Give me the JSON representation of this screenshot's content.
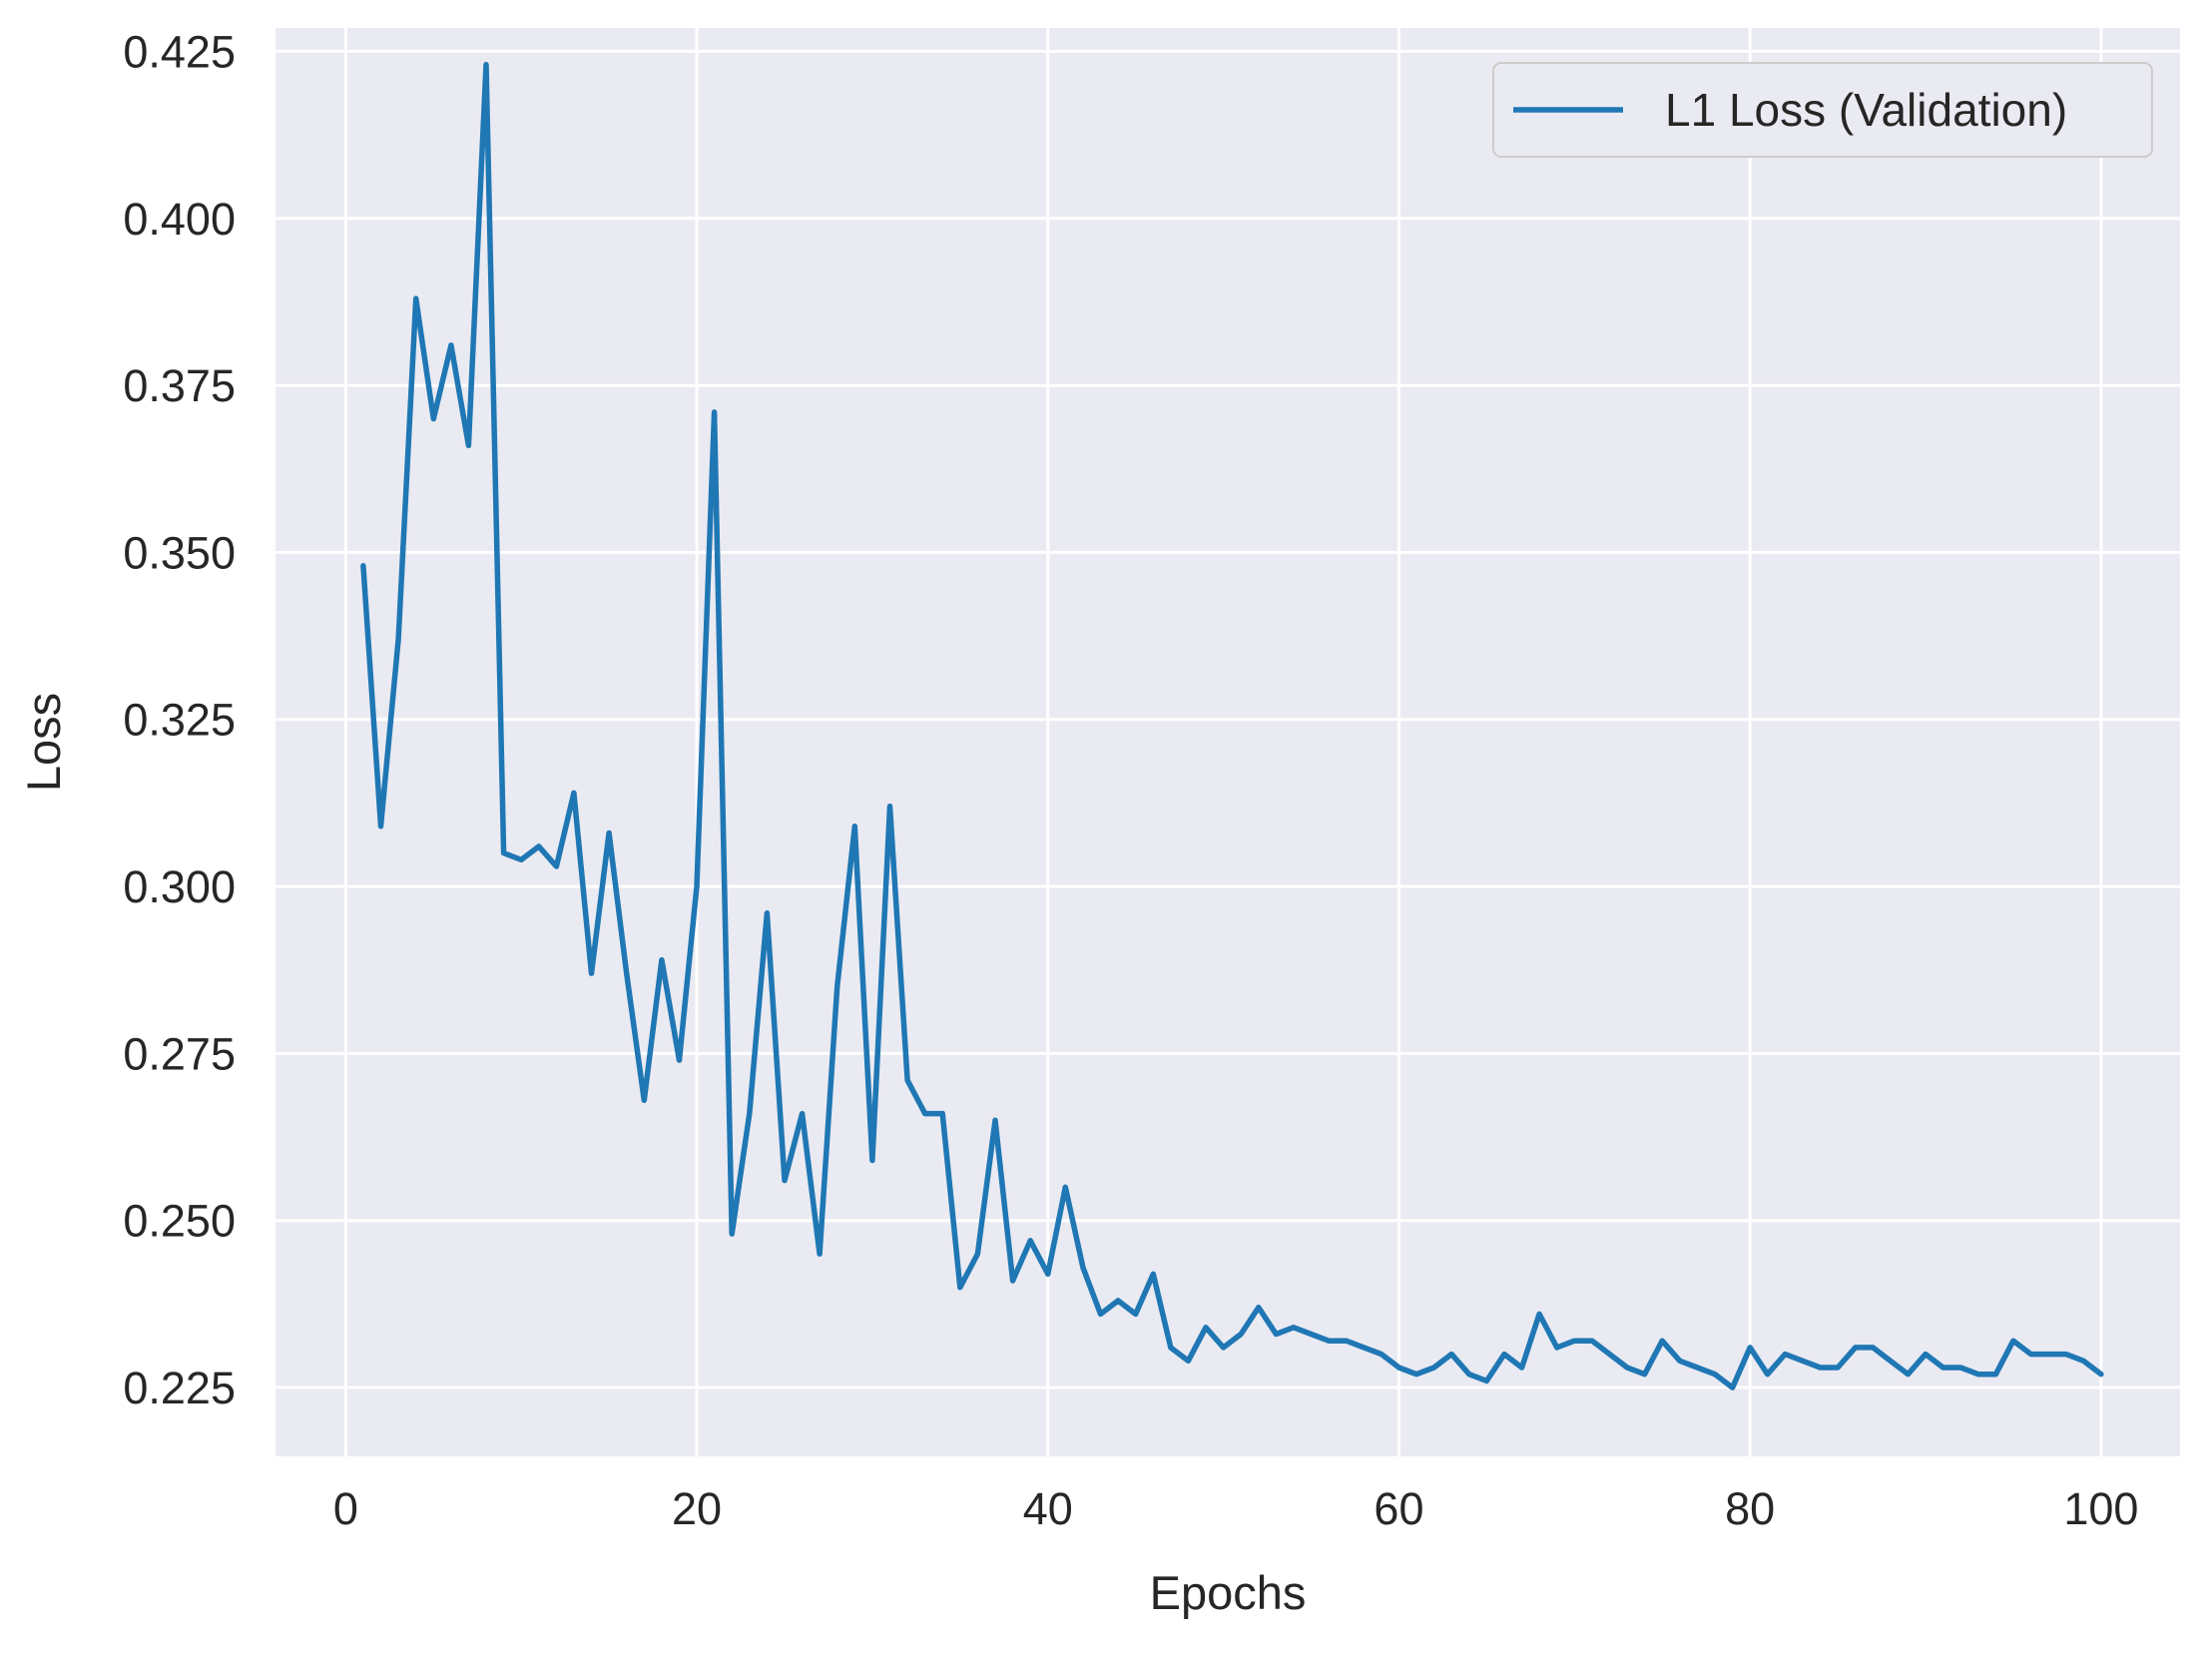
{
  "chart_data": {
    "type": "line",
    "title": "",
    "xlabel": "Epochs",
    "ylabel": "Loss",
    "xlim": [
      -4,
      104.5
    ],
    "ylim": [
      0.2147,
      0.4285
    ],
    "xticks": [
      0,
      20,
      40,
      60,
      80,
      100
    ],
    "xtick_labels": [
      "0",
      "20",
      "40",
      "60",
      "80",
      "100"
    ],
    "yticks": [
      0.225,
      0.25,
      0.275,
      0.3,
      0.325,
      0.35,
      0.375,
      0.4,
      0.425
    ],
    "ytick_labels": [
      "0.225",
      "0.250",
      "0.275",
      "0.300",
      "0.325",
      "0.350",
      "0.375",
      "0.400",
      "0.425"
    ],
    "grid": true,
    "background_color": "#eaeaf2",
    "grid_color": "#ffffff",
    "legend_position": "top-right",
    "series": [
      {
        "name": "L1 Loss (Validation)",
        "color": "#1f77b4",
        "x": [
          1,
          2,
          3,
          4,
          5,
          6,
          7,
          8,
          9,
          10,
          11,
          12,
          13,
          14,
          15,
          16,
          17,
          18,
          19,
          20,
          21,
          22,
          23,
          24,
          25,
          26,
          27,
          28,
          29,
          30,
          31,
          32,
          33,
          34,
          35,
          36,
          37,
          38,
          39,
          40,
          41,
          42,
          43,
          44,
          45,
          46,
          47,
          48,
          49,
          50,
          51,
          52,
          53,
          54,
          55,
          56,
          57,
          58,
          59,
          60,
          61,
          62,
          63,
          64,
          65,
          66,
          67,
          68,
          69,
          70,
          71,
          72,
          73,
          74,
          75,
          76,
          77,
          78,
          79,
          80,
          81,
          82,
          83,
          84,
          85,
          86,
          87,
          88,
          89,
          90,
          91,
          92,
          93,
          94,
          95,
          96,
          97,
          98,
          99,
          100
        ],
        "y": [
          0.348,
          0.309,
          0.337,
          0.388,
          0.37,
          0.381,
          0.366,
          0.423,
          0.305,
          0.304,
          0.306,
          0.303,
          0.314,
          0.287,
          0.308,
          0.287,
          0.268,
          0.289,
          0.274,
          0.3,
          0.371,
          0.248,
          0.266,
          0.296,
          0.256,
          0.266,
          0.245,
          0.285,
          0.309,
          0.259,
          0.312,
          0.271,
          0.266,
          0.266,
          0.24,
          0.245,
          0.265,
          0.241,
          0.247,
          0.242,
          0.255,
          0.243,
          0.236,
          0.238,
          0.236,
          0.242,
          0.231,
          0.229,
          0.234,
          0.231,
          0.233,
          0.237,
          0.233,
          0.234,
          0.233,
          0.232,
          0.232,
          0.231,
          0.23,
          0.228,
          0.227,
          0.228,
          0.23,
          0.227,
          0.226,
          0.23,
          0.228,
          0.236,
          0.231,
          0.232,
          0.232,
          0.23,
          0.228,
          0.227,
          0.232,
          0.229,
          0.228,
          0.227,
          0.225,
          0.231,
          0.227,
          0.23,
          0.229,
          0.228,
          0.228,
          0.231,
          0.231,
          0.229,
          0.227,
          0.23,
          0.228,
          0.228,
          0.227,
          0.227,
          0.232,
          0.23,
          0.23,
          0.23,
          0.229,
          0.227
        ]
      }
    ]
  }
}
